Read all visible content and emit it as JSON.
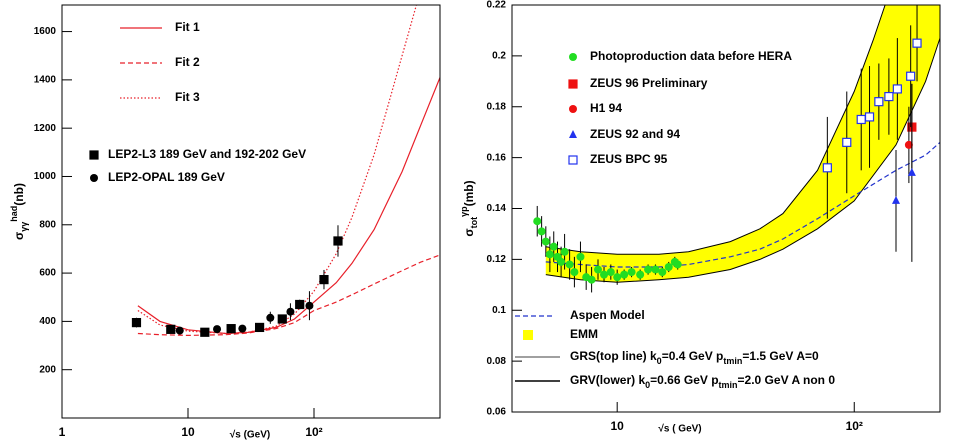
{
  "chart_data": [
    {
      "type": "scatter",
      "xscale": "log",
      "xlabel": "√s (GeV)",
      "ylabel": {
        "symbol": "σ",
        "sub": "γγ",
        "sup": "had",
        "unit": "(nb)"
      },
      "xlim": [
        1,
        1000
      ],
      "ylim": [
        0,
        1710
      ],
      "xticks": [
        1,
        10,
        {
          "value": 100,
          "label": "10²"
        }
      ],
      "yticks": [
        200,
        400,
        600,
        800,
        1000,
        1200,
        1400,
        1600
      ],
      "series": [
        {
          "name": "Fit 1",
          "kind": "line",
          "color": "#e8202a",
          "dash": "solid",
          "x": [
            4,
            6,
            10,
            20,
            30,
            50,
            70,
            100,
            150,
            200,
            300,
            500,
            700,
            1000
          ],
          "values": [
            465,
            400,
            365,
            350,
            355,
            375,
            410,
            480,
            560,
            640,
            780,
            1020,
            1210,
            1410
          ]
        },
        {
          "name": "Fit 2",
          "kind": "line",
          "color": "#e8202a",
          "dash": "dashed",
          "x": [
            4,
            6,
            10,
            20,
            30,
            50,
            70,
            100,
            150,
            200,
            300,
            500,
            700,
            1000
          ],
          "values": [
            350,
            345,
            342,
            345,
            352,
            370,
            395,
            445,
            480,
            510,
            555,
            610,
            645,
            675
          ]
        },
        {
          "name": "Fit 3",
          "kind": "line",
          "color": "#e8202a",
          "dash": "dotted",
          "x": [
            4,
            6,
            10,
            20,
            30,
            50,
            70,
            100,
            150,
            200,
            300,
            500,
            650
          ],
          "values": [
            445,
            385,
            360,
            350,
            355,
            380,
            430,
            525,
            680,
            830,
            1090,
            1500,
            1710
          ]
        },
        {
          "name": "LEP2-L3 189 GeV and 192-202 GeV",
          "kind": "scatter",
          "marker": "square",
          "color": "#000000",
          "x": [
            3.9,
            7.3,
            13.6,
            22,
            37,
            56,
            77,
            120,
            155
          ],
          "values": [
            395,
            367,
            355,
            370,
            375,
            410,
            470,
            573,
            733
          ],
          "errors": [
            20,
            12,
            12,
            12,
            12,
            15,
            20,
            40,
            65
          ]
        },
        {
          "name": "LEP2-OPAL 189 GeV",
          "kind": "scatter",
          "marker": "circle",
          "color": "#000000",
          "x": [
            8.6,
            17,
            27,
            45,
            65,
            92
          ],
          "values": [
            362,
            368,
            370,
            415,
            440,
            465
          ],
          "errors": [
            12,
            12,
            15,
            25,
            35,
            60
          ]
        }
      ]
    },
    {
      "type": "scatter",
      "xscale": "log",
      "xlabel": "√s ( GeV)",
      "ylabel": {
        "symbol": "σ",
        "sub": "tot",
        "sup": "γp",
        "unit": "(mb)"
      },
      "xlim": [
        3.6,
        230
      ],
      "ylim": [
        0.06,
        0.22
      ],
      "xticks": [
        10,
        {
          "value": 100,
          "label": "10²"
        }
      ],
      "yticks": [
        0.06,
        0.08,
        0.1,
        0.12,
        0.14,
        0.16,
        0.18,
        0.2,
        0.22
      ],
      "series": [
        {
          "name": "EMM",
          "kind": "band",
          "color": "#ffff00",
          "edge_color": "#000000",
          "upper": {
            "x": [
              5,
              7,
              10,
              15,
              20,
              30,
              40,
              50,
              70,
              100,
              120,
              135
            ],
            "values": [
              0.125,
              0.123,
              0.122,
              0.122,
              0.123,
              0.127,
              0.132,
              0.138,
              0.155,
              0.186,
              0.206,
              0.22
            ]
          },
          "lower": {
            "x": [
              5,
              7,
              10,
              15,
              20,
              30,
              40,
              50,
              70,
              100,
              150,
              200,
              230
            ],
            "values": [
              0.114,
              0.112,
              0.111,
              0.112,
              0.113,
              0.116,
              0.12,
              0.124,
              0.132,
              0.143,
              0.165,
              0.19,
              0.207
            ]
          }
        },
        {
          "name": "Aspen Model",
          "kind": "line",
          "color": "#2233cc",
          "dash": "dashed",
          "x": [
            5,
            7,
            10,
            15,
            20,
            30,
            40,
            50,
            70,
            100,
            150,
            200,
            230
          ],
          "values": [
            0.119,
            0.118,
            0.117,
            0.117,
            0.118,
            0.121,
            0.124,
            0.128,
            0.136,
            0.145,
            0.155,
            0.161,
            0.166
          ]
        },
        {
          "name": "Photoproduction data before HERA",
          "kind": "scatter",
          "marker": "circle",
          "color": "#22dd22",
          "x": [
            4.6,
            4.8,
            5.0,
            5.2,
            5.4,
            5.6,
            5.8,
            6.0,
            6.3,
            6.6,
            7.0,
            7.4,
            7.8,
            8.3,
            8.8,
            9.4,
            10,
            10.7,
            11.5,
            12.5,
            13.5,
            14.5,
            15.5,
            16.5,
            17.5,
            18
          ],
          "values": [
            0.135,
            0.131,
            0.127,
            0.122,
            0.125,
            0.121,
            0.119,
            0.123,
            0.118,
            0.115,
            0.121,
            0.113,
            0.112,
            0.116,
            0.114,
            0.115,
            0.113,
            0.114,
            0.115,
            0.114,
            0.116,
            0.116,
            0.115,
            0.117,
            0.119,
            0.118
          ],
          "errors": [
            0.006,
            0.006,
            0.006,
            0.007,
            0.006,
            0.006,
            0.006,
            0.007,
            0.006,
            0.006,
            0.006,
            0.005,
            0.005,
            0.004,
            0.003,
            0.003,
            0.003,
            0.002,
            0.002,
            0.002,
            0.002,
            0.002,
            0.002,
            0.002,
            0.002,
            0.002
          ]
        },
        {
          "name": "ZEUS 96 Preliminary",
          "kind": "scatter",
          "marker": "square",
          "color": "#ee1111",
          "x": [
            175
          ],
          "values": [
            0.172
          ],
          "errors": [
            0.017
          ]
        },
        {
          "name": "H1 94",
          "kind": "scatter",
          "marker": "circle",
          "color": "#ee1111",
          "x": [
            170
          ],
          "values": [
            0.165
          ],
          "errors": [
            0.015
          ]
        },
        {
          "name": "ZEUS 92 and 94",
          "kind": "scatter",
          "marker": "triangle",
          "color": "#2233ee",
          "x": [
            150,
            175
          ],
          "values": [
            0.143,
            0.154
          ],
          "errors": [
            0.02,
            0.035
          ]
        },
        {
          "name": "ZEUS BPC 95",
          "kind": "scatter",
          "marker": "open-square",
          "color": "#2233ee",
          "x": [
            77,
            93,
            107,
            116,
            127,
            140,
            152,
            173,
            184
          ],
          "values": [
            0.156,
            0.166,
            0.175,
            0.176,
            0.182,
            0.184,
            0.187,
            0.192,
            0.205
          ],
          "errors": [
            0.02,
            0.02,
            0.02,
            0.02,
            0.015,
            0.015,
            0.02,
            0.02,
            0.015
          ]
        }
      ],
      "notes": [
        {
          "name": [
            "GRS(top line) k",
            "0",
            "=0.4 GeV  p",
            "tmin",
            "=1.5 GeV A=0"
          ],
          "color": "#000000"
        },
        {
          "name": [
            "GRV(lower) k",
            "0",
            "=0.66 GeV p",
            "tmin",
            "=2.0 GeV A non 0"
          ],
          "color": "#000000"
        }
      ]
    }
  ]
}
